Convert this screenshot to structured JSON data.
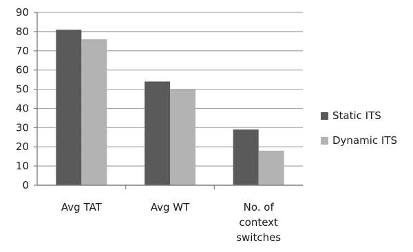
{
  "chart_data": {
    "type": "bar",
    "categories": [
      "Avg TAT",
      "Avg WT",
      "No. of context switches"
    ],
    "category_lines": [
      [
        "Avg TAT"
      ],
      [
        "Avg WT"
      ],
      [
        "No. of",
        "context",
        "switches"
      ]
    ],
    "series": [
      {
        "name": "Static ITS",
        "values": [
          81,
          54,
          29
        ],
        "color": "#5a5a5a"
      },
      {
        "name": "Dynamic ITS",
        "values": [
          76,
          50,
          18
        ],
        "color": "#b3b3b3"
      }
    ],
    "ylim": [
      0,
      90
    ],
    "yticks": [
      "0",
      "10",
      "20",
      "30",
      "40",
      "50",
      "60",
      "70",
      "80",
      "90"
    ],
    "grid": true,
    "legend_position": "right"
  }
}
